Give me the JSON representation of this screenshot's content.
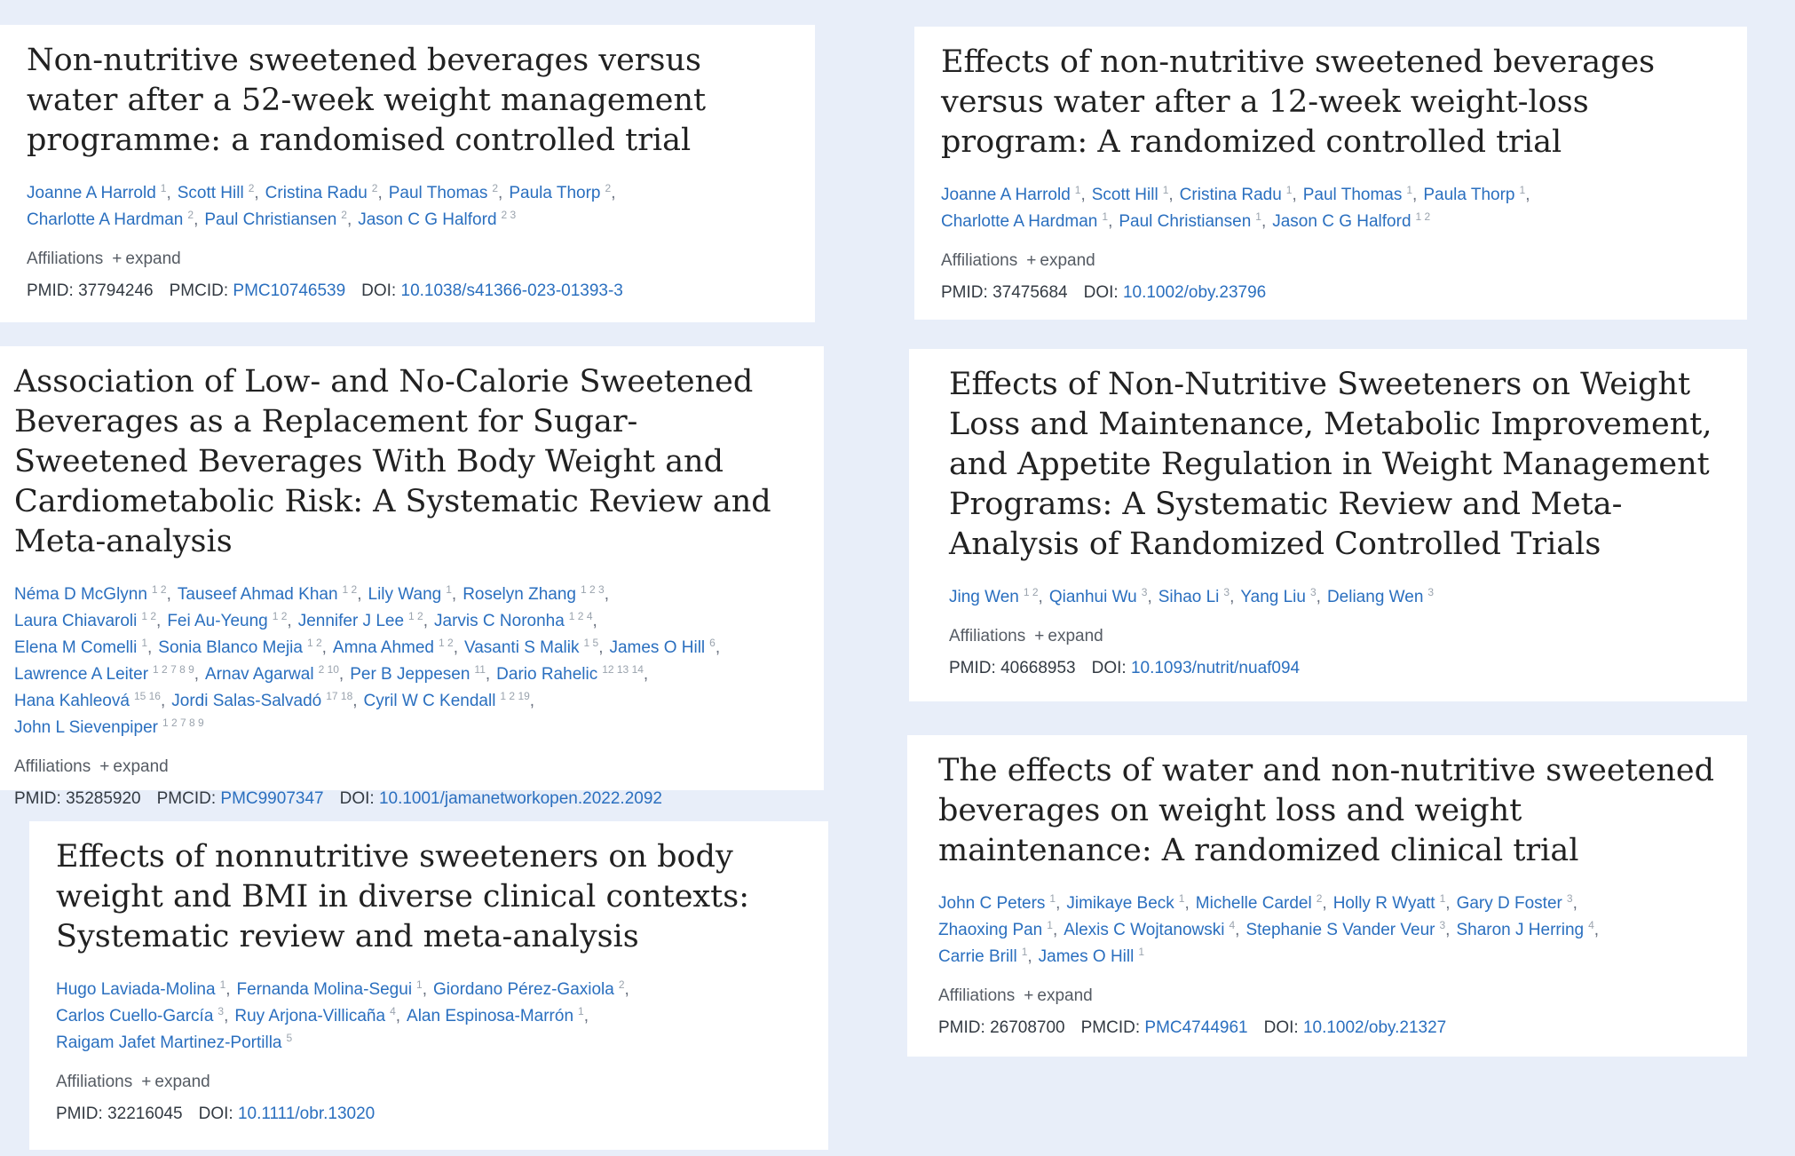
{
  "articles": [
    {
      "title": "Non-nutritive sweetened beverages versus water after a 52-week weight management programme: a randomised controlled trial",
      "authors": [
        {
          "name": "Joanne A Harrold",
          "aff": "1"
        },
        {
          "name": "Scott Hill",
          "aff": "2"
        },
        {
          "name": "Cristina Radu",
          "aff": "2"
        },
        {
          "name": "Paul Thomas",
          "aff": "2"
        },
        {
          "name": "Paula Thorp",
          "aff": "2"
        },
        {
          "name": "Charlotte A Hardman",
          "aff": "2"
        },
        {
          "name": "Paul Christiansen",
          "aff": "2"
        },
        {
          "name": "Jason C G Halford",
          "aff": "2 3"
        }
      ],
      "affiliations_label": "Affiliations",
      "expand_label": "expand",
      "pmid_label": "PMID:",
      "pmid": "37794246",
      "pmcid_label": "PMCID:",
      "pmcid": "PMC10746539",
      "doi_label": "DOI:",
      "doi": "10.1038/s41366-023-01393-3"
    },
    {
      "title": "Effects of non-nutritive sweetened beverages versus water after a 12-week weight-loss program: A randomized controlled trial",
      "authors": [
        {
          "name": "Joanne A Harrold",
          "aff": "1"
        },
        {
          "name": "Scott Hill",
          "aff": "1"
        },
        {
          "name": "Cristina Radu",
          "aff": "1"
        },
        {
          "name": "Paul Thomas",
          "aff": "1"
        },
        {
          "name": "Paula Thorp",
          "aff": "1"
        },
        {
          "name": "Charlotte A Hardman",
          "aff": "1"
        },
        {
          "name": "Paul Christiansen",
          "aff": "1"
        },
        {
          "name": "Jason C G Halford",
          "aff": "1 2"
        }
      ],
      "affiliations_label": "Affiliations",
      "expand_label": "expand",
      "pmid_label": "PMID:",
      "pmid": "37475684",
      "doi_label": "DOI:",
      "doi": "10.1002/oby.23796"
    },
    {
      "title": "Association of Low- and No-Calorie Sweetened Beverages as a Replacement for Sugar-Sweetened Beverages With Body Weight and Cardiometabolic Risk: A Systematic Review and Meta-analysis",
      "authors": [
        {
          "name": "Néma D McGlynn",
          "aff": "1 2"
        },
        {
          "name": "Tauseef Ahmad Khan",
          "aff": "1 2"
        },
        {
          "name": "Lily Wang",
          "aff": "1"
        },
        {
          "name": "Roselyn Zhang",
          "aff": "1 2 3"
        },
        {
          "name": "Laura Chiavaroli",
          "aff": "1 2"
        },
        {
          "name": "Fei Au-Yeung",
          "aff": "1 2"
        },
        {
          "name": "Jennifer J Lee",
          "aff": "1 2"
        },
        {
          "name": "Jarvis C Noronha",
          "aff": "1 2 4"
        },
        {
          "name": "Elena M Comelli",
          "aff": "1"
        },
        {
          "name": "Sonia Blanco Mejia",
          "aff": "1 2"
        },
        {
          "name": "Amna Ahmed",
          "aff": "1 2"
        },
        {
          "name": "Vasanti S Malik",
          "aff": "1 5"
        },
        {
          "name": "James O Hill",
          "aff": "6"
        },
        {
          "name": "Lawrence A Leiter",
          "aff": "1 2 7 8 9"
        },
        {
          "name": "Arnav Agarwal",
          "aff": "2 10"
        },
        {
          "name": "Per B Jeppesen",
          "aff": "11"
        },
        {
          "name": "Dario Rahelic",
          "aff": "12 13 14"
        },
        {
          "name": "Hana Kahleová",
          "aff": "15 16"
        },
        {
          "name": "Jordi Salas-Salvadó",
          "aff": "17 18"
        },
        {
          "name": "Cyril W C Kendall",
          "aff": "1 2 19"
        },
        {
          "name": "John L Sievenpiper",
          "aff": "1 2 7 8 9"
        }
      ],
      "affiliations_label": "Affiliations",
      "expand_label": "expand",
      "pmid_label": "PMID:",
      "pmid": "35285920",
      "pmcid_label": "PMCID:",
      "pmcid": "PMC9907347",
      "doi_label": "DOI:",
      "doi": "10.1001/jamanetworkopen.2022.2092"
    },
    {
      "title": "Effects of Non-Nutritive Sweeteners on Weight Loss and Maintenance, Metabolic Improvement, and Appetite Regulation in Weight Management Programs: A Systematic Review and Meta-Analysis of Randomized Controlled Trials",
      "authors": [
        {
          "name": "Jing Wen",
          "aff": "1 2"
        },
        {
          "name": "Qianhui Wu",
          "aff": "3"
        },
        {
          "name": "Sihao Li",
          "aff": "3"
        },
        {
          "name": "Yang Liu",
          "aff": "3"
        },
        {
          "name": "Deliang Wen",
          "aff": "3"
        }
      ],
      "affiliations_label": "Affiliations",
      "expand_label": "expand",
      "pmid_label": "PMID:",
      "pmid": "40668953",
      "doi_label": "DOI:",
      "doi": "10.1093/nutrit/nuaf094"
    },
    {
      "title": "Effects of nonnutritive sweeteners on body weight and BMI in diverse clinical contexts: Systematic review and meta-analysis",
      "authors": [
        {
          "name": "Hugo Laviada-Molina",
          "aff": "1"
        },
        {
          "name": "Fernanda Molina-Segui",
          "aff": "1"
        },
        {
          "name": "Giordano Pérez-Gaxiola",
          "aff": "2"
        },
        {
          "name": "Carlos Cuello-García",
          "aff": "3"
        },
        {
          "name": "Ruy Arjona-Villicaña",
          "aff": "4"
        },
        {
          "name": "Alan Espinosa-Marrón",
          "aff": "1"
        },
        {
          "name": "Raigam Jafet Martinez-Portilla",
          "aff": "5"
        }
      ],
      "affiliations_label": "Affiliations",
      "expand_label": "expand",
      "pmid_label": "PMID:",
      "pmid": "32216045",
      "doi_label": "DOI:",
      "doi": "10.1111/obr.13020"
    },
    {
      "title": "The effects of water and non-nutritive sweetened beverages on weight loss and weight maintenance: A randomized clinical trial",
      "authors": [
        {
          "name": "John C Peters",
          "aff": "1"
        },
        {
          "name": "Jimikaye Beck",
          "aff": "1"
        },
        {
          "name": "Michelle Cardel",
          "aff": "2"
        },
        {
          "name": "Holly R Wyatt",
          "aff": "1"
        },
        {
          "name": "Gary D Foster",
          "aff": "3"
        },
        {
          "name": "Zhaoxing Pan",
          "aff": "1"
        },
        {
          "name": "Alexis C Wojtanowski",
          "aff": "4"
        },
        {
          "name": "Stephanie S Vander Veur",
          "aff": "3"
        },
        {
          "name": "Sharon J Herring",
          "aff": "4"
        },
        {
          "name": "Carrie Brill",
          "aff": "1"
        },
        {
          "name": "James O Hill",
          "aff": "1"
        }
      ],
      "affiliations_label": "Affiliations",
      "expand_label": "expand",
      "pmid_label": "PMID:",
      "pmid": "26708700",
      "pmcid_label": "PMCID:",
      "pmcid": "PMC4744961",
      "doi_label": "DOI:",
      "doi": "10.1002/oby.21327"
    }
  ]
}
